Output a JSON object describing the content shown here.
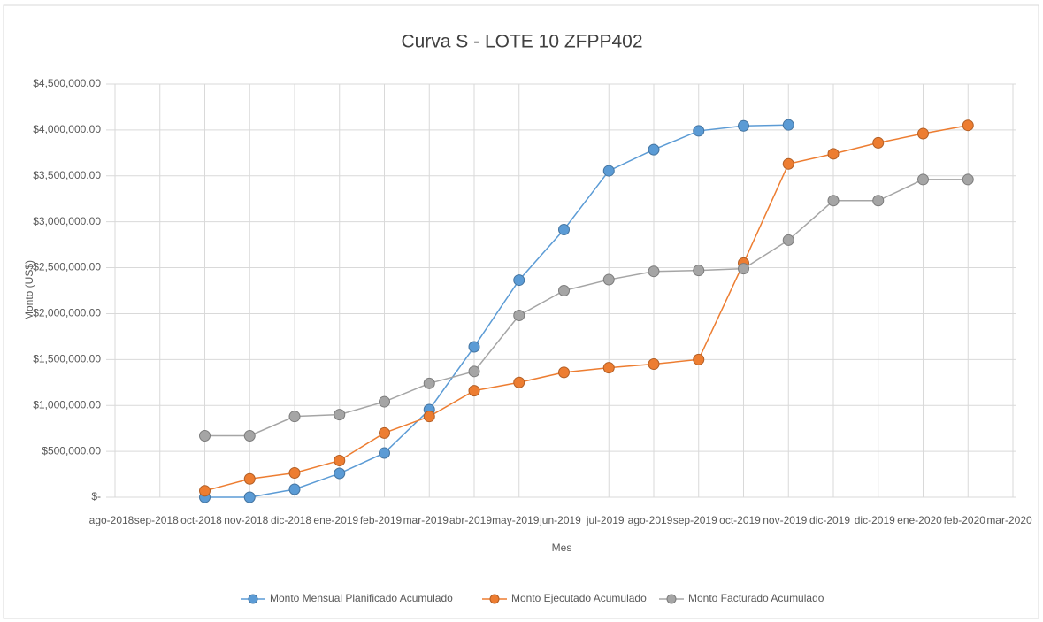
{
  "chart_data": {
    "type": "line",
    "title": "Curva S - LOTE 10 ZFPP402",
    "x_label": "Mes",
    "y_label": "Monto (US$)",
    "categories": [
      "ago-2018",
      "sep-2018",
      "oct-2018",
      "nov-2018",
      "dic-2018",
      "ene-2019",
      "feb-2019",
      "mar-2019",
      "abr-2019",
      "may-2019",
      "jun-2019",
      "jul-2019",
      "ago-2019",
      "sep-2019",
      "oct-2019",
      "nov-2019",
      "dic-2019",
      "dic-2019",
      "ene-2020",
      "feb-2020",
      "mar-2020"
    ],
    "series": [
      {
        "name": "Monto Mensual Planificado Acumulado",
        "color": "#5b9bd5",
        "values": [
          null,
          null,
          0,
          0,
          87000,
          260000,
          482000,
          954000,
          1638000,
          2365000,
          2915000,
          3555000,
          3786000,
          3990000,
          4045000,
          4055000,
          null,
          null,
          null,
          null,
          null
        ]
      },
      {
        "name": "Monto Ejecutado Acumulado",
        "color": "#ed7d31",
        "values": [
          null,
          null,
          70000,
          200000,
          265000,
          400000,
          700000,
          880000,
          1160000,
          1250000,
          1360000,
          1410000,
          1450000,
          1500000,
          2550000,
          3630000,
          3740000,
          3860000,
          3960000,
          4050000,
          null
        ]
      },
      {
        "name": "Monto Facturado Acumulado",
        "color": "#a5a5a5",
        "values": [
          null,
          null,
          670000,
          670000,
          880000,
          900000,
          1040000,
          1240000,
          1370000,
          1980000,
          2250000,
          2370000,
          2460000,
          2470000,
          2490000,
          2800000,
          3230000,
          3230000,
          3460000,
          3460000,
          null
        ]
      }
    ],
    "ylim": [
      0,
      4500000
    ],
    "yticks": [
      {
        "value": 0,
        "label": "$-"
      },
      {
        "value": 500000,
        "label": "$500,000.00"
      },
      {
        "value": 1000000,
        "label": "$1,000,000.00"
      },
      {
        "value": 1500000,
        "label": "$1,500,000.00"
      },
      {
        "value": 2000000,
        "label": "$2,000,000.00"
      },
      {
        "value": 2500000,
        "label": "$2,500,000.00"
      },
      {
        "value": 3000000,
        "label": "$3,000,000.00"
      },
      {
        "value": 3500000,
        "label": "$3,500,000.00"
      },
      {
        "value": 4000000,
        "label": "$4,000,000.00"
      },
      {
        "value": 4500000,
        "label": "$4,500,000.00"
      }
    ],
    "grid": true,
    "legend": "bottom"
  }
}
